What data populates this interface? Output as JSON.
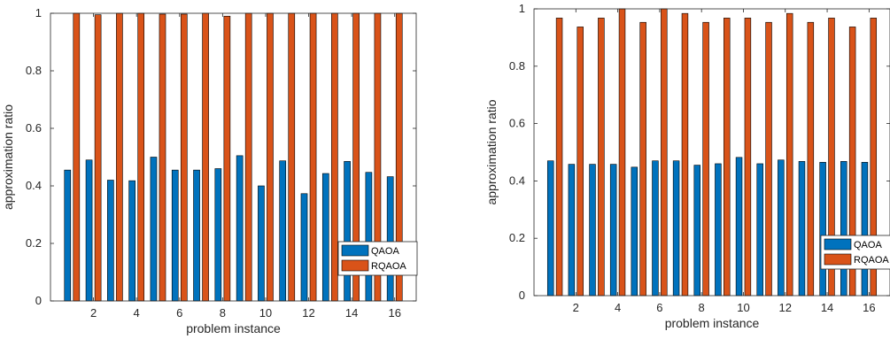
{
  "chart_data": [
    {
      "type": "bar",
      "xlabel": "problem instance",
      "ylabel": "approximation ratio",
      "ylim": [
        0,
        1
      ],
      "xlim": [
        0,
        17
      ],
      "xticks": [
        2,
        4,
        6,
        8,
        10,
        12,
        14,
        16
      ],
      "xtick_labels": [
        "2",
        "4",
        "6",
        "8",
        "10",
        "12",
        "14",
        "16"
      ],
      "yticks": [
        0,
        0.2,
        0.4,
        0.6,
        0.8,
        1
      ],
      "ytick_labels": [
        "0",
        "0.2",
        "0.4",
        "0.6",
        "0.8",
        "1"
      ],
      "categories": [
        1,
        2,
        3,
        4,
        5,
        6,
        7,
        8,
        9,
        10,
        11,
        12,
        13,
        14,
        15,
        16
      ],
      "legend_position": "bottom-right",
      "series": [
        {
          "name": "QAOA",
          "color": "#0072BD",
          "values": [
            0.455,
            0.49,
            0.42,
            0.418,
            0.5,
            0.455,
            0.455,
            0.46,
            0.505,
            0.4,
            0.487,
            0.373,
            0.443,
            0.485,
            0.447,
            0.432
          ]
        },
        {
          "name": "RQAOA",
          "color": "#D95319",
          "values": [
            1.0,
            0.995,
            1.0,
            1.0,
            0.997,
            0.997,
            1.0,
            0.99,
            1.0,
            1.0,
            1.0,
            1.0,
            1.0,
            1.0,
            1.0,
            1.0
          ]
        }
      ]
    },
    {
      "type": "bar",
      "xlabel": "problem instance",
      "ylabel": "approximation ratio",
      "ylim": [
        0,
        1
      ],
      "xlim": [
        0,
        17
      ],
      "xticks": [
        2,
        4,
        6,
        8,
        10,
        12,
        14,
        16
      ],
      "xtick_labels": [
        "2",
        "4",
        "6",
        "8",
        "10",
        "12",
        "14",
        "16"
      ],
      "yticks": [
        0,
        0.2,
        0.4,
        0.6,
        0.8,
        1
      ],
      "ytick_labels": [
        "0",
        "0.2",
        "0.4",
        "0.6",
        "0.8",
        "1"
      ],
      "categories": [
        1,
        2,
        3,
        4,
        5,
        6,
        7,
        8,
        9,
        10,
        11,
        12,
        13,
        14,
        15,
        16
      ],
      "legend_position": "bottom-right",
      "series": [
        {
          "name": "QAOA",
          "color": "#0072BD",
          "values": [
            0.47,
            0.458,
            0.458,
            0.458,
            0.448,
            0.47,
            0.47,
            0.455,
            0.46,
            0.482,
            0.46,
            0.473,
            0.468,
            0.465,
            0.468,
            0.465
          ]
        },
        {
          "name": "RQAOA",
          "color": "#D95319",
          "values": [
            0.968,
            0.937,
            0.968,
            1.0,
            0.953,
            1.0,
            0.984,
            0.953,
            0.968,
            0.968,
            0.953,
            0.984,
            0.953,
            0.968,
            0.937,
            0.968
          ]
        }
      ]
    }
  ]
}
